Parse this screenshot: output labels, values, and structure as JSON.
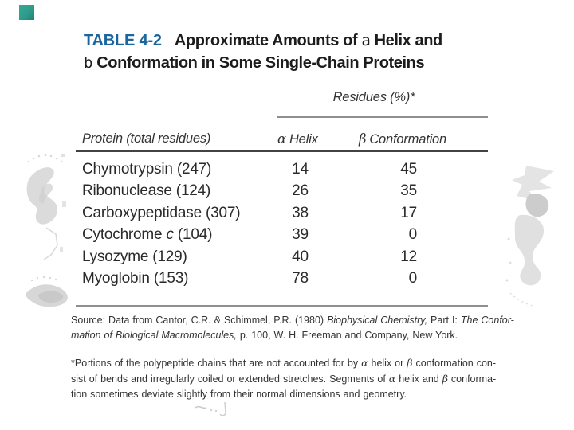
{
  "accent": {
    "square_color": "#2E9C8B"
  },
  "colors": {
    "label_blue": "#1A659E",
    "body_text": "#2A2A2A",
    "rule_dark": "#424242",
    "rule_light": "#8F8F8F",
    "watermark_gray": "#DCDCDC"
  },
  "table": {
    "label": "TABLE 4-2",
    "title_line1": {
      "pre": "Approximate Amounts of ",
      "special": "a",
      "post": " Helix and"
    },
    "title_line2": {
      "special": "b",
      "post": " Conformation in Some Single-Chain Proteins"
    },
    "spanner": "Residues (%)*",
    "col_protein": "Protein (total residues)",
    "col_alpha_symbol": "α",
    "col_alpha_label": "Helix",
    "col_beta_symbol": "β",
    "col_beta_label": "Conformation",
    "rows": [
      {
        "pre": "Chymotrypsin (247)",
        "it": "",
        "post": "",
        "alpha": "14",
        "beta": "45"
      },
      {
        "pre": "Ribonuclease (124)",
        "it": "",
        "post": "",
        "alpha": "26",
        "beta": "35"
      },
      {
        "pre": "Carboxypeptidase (307)",
        "it": "",
        "post": "",
        "alpha": "38",
        "beta": "17"
      },
      {
        "pre": "Cytochrome ",
        "it": "c",
        "post": " (104)",
        "alpha": "39",
        "beta": "0"
      },
      {
        "pre": "Lysozyme (129)",
        "it": "",
        "post": "",
        "alpha": "40",
        "beta": "12"
      },
      {
        "pre": "Myoglobin (153)",
        "it": "",
        "post": "",
        "alpha": "78",
        "beta": "0"
      }
    ]
  },
  "notes": {
    "source_lines": [
      [
        {
          "s": "r",
          "t": "Source: Data from Cantor, C.R. & Schimmel, P.R. (1980) "
        },
        {
          "s": "i",
          "t": "Biophysical Chemistry,"
        },
        {
          "s": "r",
          "t": " Part I: "
        },
        {
          "s": "i",
          "t": "The Confor-"
        }
      ],
      [
        {
          "s": "i",
          "t": "mation of Biological Macromolecules,"
        },
        {
          "s": "r",
          "t": " p. 100, W. H. Freeman and Company, New York."
        }
      ]
    ],
    "footnote_lines": [
      [
        {
          "s": "r",
          "t": "*Portions of the polypeptide chains that are not accounted for by "
        },
        {
          "s": "g",
          "t": "α"
        },
        {
          "s": "r",
          "t": " helix or "
        },
        {
          "s": "g",
          "t": "β"
        },
        {
          "s": "r",
          "t": " conformation con-"
        }
      ],
      [
        {
          "s": "r",
          "t": "sist of bends and irregularly coiled or extended stretches. Segments of "
        },
        {
          "s": "g",
          "t": "α"
        },
        {
          "s": "r",
          "t": " helix and "
        },
        {
          "s": "g",
          "t": "β"
        },
        {
          "s": "r",
          "t": " conforma-"
        }
      ],
      [
        {
          "s": "r",
          "t": "tion sometimes deviate slightly from their normal dimensions and geometry."
        }
      ]
    ]
  }
}
